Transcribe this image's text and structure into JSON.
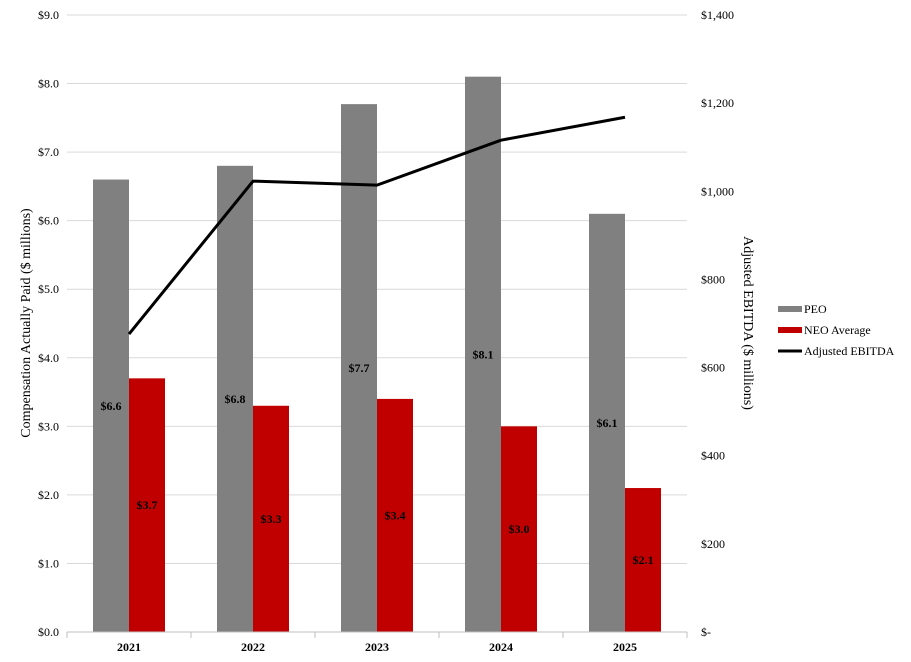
{
  "chart_data": {
    "type": "bar",
    "categories": [
      "2021",
      "2022",
      "2023",
      "2024",
      "2025"
    ],
    "series": [
      {
        "name": "PEO",
        "kind": "bar",
        "axis": "left",
        "color": "#808080",
        "values": [
          6.6,
          6.8,
          7.7,
          8.1,
          6.1
        ],
        "labels": [
          "$6.6",
          "$6.8",
          "$7.7",
          "$8.1",
          "$6.1"
        ]
      },
      {
        "name": "NEO Average",
        "kind": "bar",
        "axis": "left",
        "color": "#C00000",
        "values": [
          3.7,
          3.3,
          3.4,
          3.0,
          2.1
        ],
        "labels": [
          "$3.7",
          "$3.3",
          "$3.4",
          "$3.0",
          "$2.1"
        ]
      },
      {
        "name": "Adjusted EBITDA",
        "kind": "line",
        "axis": "right",
        "color": "#000000",
        "values": [
          676,
          1023,
          1014,
          1116,
          1168
        ]
      }
    ],
    "ylabel": "Compensation Actually Paid ($ millions)",
    "y2label": "Adjusted EBITDA ($ millions)",
    "ylim": [
      0,
      9
    ],
    "y2lim": [
      0,
      1400
    ],
    "yticks": [
      "$0.0",
      "$1.0",
      "$2.0",
      "$3.0",
      "$4.0",
      "$5.0",
      "$6.0",
      "$7.0",
      "$8.0",
      "$9.0"
    ],
    "y2ticks": [
      "$-",
      "$200",
      "$400",
      "$600",
      "$800",
      "$1,000",
      "$1,200",
      "$1,400"
    ],
    "grid": true,
    "legend": "right"
  }
}
